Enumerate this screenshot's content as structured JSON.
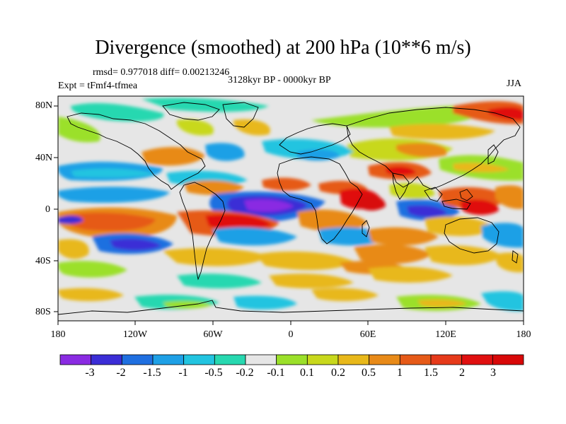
{
  "title": "Divergence (smoothed) at 200 hPa (10**6 m/s)",
  "stats_text": "rmsd= 0.977018 diff= 0.00213246",
  "period_text": "3128kyr BP - 0000kyr BP",
  "expt_text": "Expt = tFmf4-tfmea",
  "season": "JJA",
  "lat_labels": [
    "80N",
    "40N",
    "0",
    "40S",
    "80S"
  ],
  "lon_labels": [
    "180",
    "120W",
    "60W",
    "0",
    "60E",
    "120E",
    "180"
  ],
  "colorbar": {
    "labels": [
      "-3",
      "-2",
      "-1.5",
      "-1",
      "-0.5",
      "-0.2",
      "-0.1",
      "0.1",
      "0.2",
      "0.5",
      "1",
      "1.5",
      "2",
      "3"
    ],
    "colors": [
      "#8a2be2",
      "#3b2dd6",
      "#1f6fe0",
      "#1ea0e6",
      "#22c4e0",
      "#27d8b0",
      "#e6e6e6",
      "#9be02a",
      "#c8d81c",
      "#e8b81a",
      "#e88a18",
      "#e65a18",
      "#e63a1a",
      "#e01010",
      "#d80808"
    ]
  },
  "colors": {
    "ocean_bg": "#e6e6e6",
    "coast": "#000000"
  }
}
